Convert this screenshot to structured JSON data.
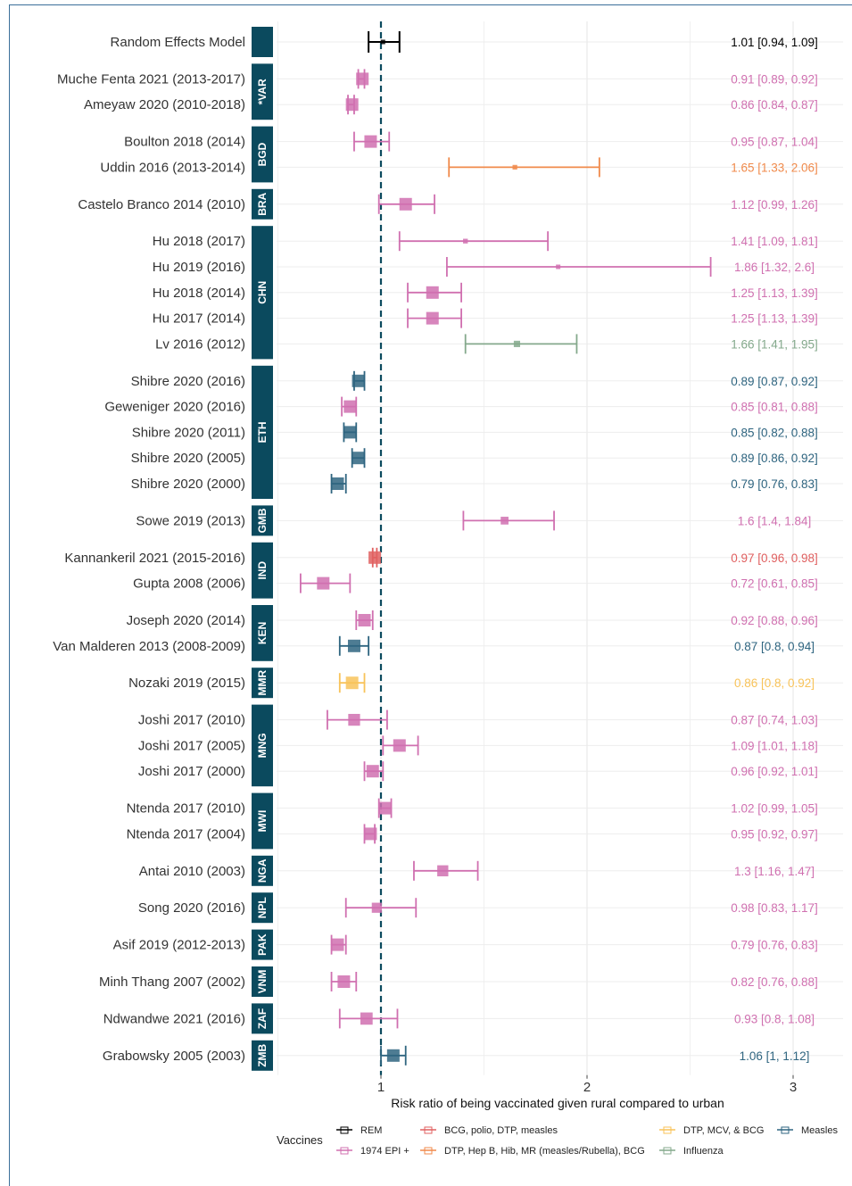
{
  "colors": {
    "REM": "#000000",
    "1974 EPI +": "#d070b0",
    "BCG, polio, DTP, measles": "#e06060",
    "DTP, Hep B, Hib, MR (measles/Rubella), BCG": "#f08a4b",
    "DTP, MCV, & BCG": "#f8c35a",
    "Influenza": "#84a98c",
    "Measles": "#2f6580",
    "strip": "#0b4a5e"
  },
  "chart_data": {
    "type": "forest",
    "xlabel": "Risk ratio  of being vaccinated given rural compared to urban",
    "x_ticks": [
      "1",
      "2",
      "3"
    ],
    "x_tick_values": [
      1,
      2,
      3
    ],
    "xlim": [
      0.5,
      3.2
    ],
    "reference_line": 1,
    "legend_title": "Vaccines",
    "legend": [
      "REM",
      "1974 EPI +",
      "BCG, polio, DTP, measles",
      "DTP, Hep B, Hib, MR (measles/Rubella), BCG",
      "DTP, MCV, & BCG",
      "Influenza",
      "Measles"
    ],
    "groups": [
      {
        "strip": "",
        "rows": [
          {
            "label": "Random Effects Model",
            "est": 1.01,
            "lo": 0.94,
            "hi": 1.09,
            "ci_text": "1.01 [0.94, 1.09]",
            "vaccine": "REM"
          }
        ]
      },
      {
        "strip": "*VAR",
        "rows": [
          {
            "label": "Muche Fenta 2021 (2013-2017)",
            "est": 0.91,
            "lo": 0.89,
            "hi": 0.92,
            "ci_text": "0.91 [0.89, 0.92]",
            "vaccine": "1974 EPI +"
          },
          {
            "label": "Ameyaw 2020 (2010-2018)",
            "est": 0.86,
            "lo": 0.84,
            "hi": 0.87,
            "ci_text": "0.86 [0.84, 0.87]",
            "vaccine": "1974 EPI +"
          }
        ]
      },
      {
        "strip": "BGD",
        "rows": [
          {
            "label": "Boulton 2018 (2014)",
            "est": 0.95,
            "lo": 0.87,
            "hi": 1.04,
            "ci_text": "0.95 [0.87, 1.04]",
            "vaccine": "1974 EPI +"
          },
          {
            "label": "Uddin 2016 (2013-2014)",
            "est": 1.65,
            "lo": 1.33,
            "hi": 2.06,
            "ci_text": "1.65 [1.33, 2.06]",
            "vaccine": "DTP, Hep B, Hib, MR (measles/Rubella), BCG"
          }
        ]
      },
      {
        "strip": "BRA",
        "rows": [
          {
            "label": "Castelo Branco 2014 (2010)",
            "est": 1.12,
            "lo": 0.99,
            "hi": 1.26,
            "ci_text": "1.12 [0.99, 1.26]",
            "vaccine": "1974 EPI +"
          }
        ]
      },
      {
        "strip": "CHN",
        "rows": [
          {
            "label": "Hu 2018 (2017)",
            "est": 1.41,
            "lo": 1.09,
            "hi": 1.81,
            "ci_text": "1.41 [1.09, 1.81]",
            "vaccine": "1974 EPI +"
          },
          {
            "label": "Hu 2019 (2016)",
            "est": 1.86,
            "lo": 1.32,
            "hi": 2.6,
            "ci_text": "1.86 [1.32, 2.6]",
            "vaccine": "1974 EPI +"
          },
          {
            "label": "Hu 2018 (2014)",
            "est": 1.25,
            "lo": 1.13,
            "hi": 1.39,
            "ci_text": "1.25 [1.13, 1.39]",
            "vaccine": "1974 EPI +"
          },
          {
            "label": "Hu 2017 (2014)",
            "est": 1.25,
            "lo": 1.13,
            "hi": 1.39,
            "ci_text": "1.25 [1.13, 1.39]",
            "vaccine": "1974 EPI +"
          },
          {
            "label": "Lv 2016 (2012)",
            "est": 1.66,
            "lo": 1.41,
            "hi": 1.95,
            "ci_text": "1.66 [1.41, 1.95]",
            "vaccine": "Influenza"
          }
        ]
      },
      {
        "strip": "ETH",
        "rows": [
          {
            "label": "Shibre 2020 (2016)",
            "est": 0.89,
            "lo": 0.87,
            "hi": 0.92,
            "ci_text": "0.89 [0.87, 0.92]",
            "vaccine": "Measles"
          },
          {
            "label": "Geweniger 2020 (2016)",
            "est": 0.85,
            "lo": 0.81,
            "hi": 0.88,
            "ci_text": "0.85 [0.81, 0.88]",
            "vaccine": "1974 EPI +"
          },
          {
            "label": "Shibre 2020 (2011)",
            "est": 0.85,
            "lo": 0.82,
            "hi": 0.88,
            "ci_text": "0.85 [0.82, 0.88]",
            "vaccine": "Measles"
          },
          {
            "label": "Shibre 2020 (2005)",
            "est": 0.89,
            "lo": 0.86,
            "hi": 0.92,
            "ci_text": "0.89 [0.86, 0.92]",
            "vaccine": "Measles"
          },
          {
            "label": "Shibre 2020 (2000)",
            "est": 0.79,
            "lo": 0.76,
            "hi": 0.83,
            "ci_text": "0.79 [0.76, 0.83]",
            "vaccine": "Measles"
          }
        ]
      },
      {
        "strip": "GMB",
        "rows": [
          {
            "label": "Sowe 2019 (2013)",
            "est": 1.6,
            "lo": 1.4,
            "hi": 1.84,
            "ci_text": "1.6 [1.4, 1.84]",
            "vaccine": "1974 EPI +"
          }
        ]
      },
      {
        "strip": "IND",
        "rows": [
          {
            "label": "Kannankeril 2021 (2015-2016)",
            "est": 0.97,
            "lo": 0.96,
            "hi": 0.98,
            "ci_text": "0.97 [0.96, 0.98]",
            "vaccine": "BCG, polio, DTP, measles"
          },
          {
            "label": "Gupta 2008 (2006)",
            "est": 0.72,
            "lo": 0.61,
            "hi": 0.85,
            "ci_text": "0.72 [0.61, 0.85]",
            "vaccine": "1974 EPI +"
          }
        ]
      },
      {
        "strip": "KEN",
        "rows": [
          {
            "label": "Joseph 2020 (2014)",
            "est": 0.92,
            "lo": 0.88,
            "hi": 0.96,
            "ci_text": "0.92 [0.88, 0.96]",
            "vaccine": "1974 EPI +"
          },
          {
            "label": "Van Malderen 2013 (2008-2009)",
            "est": 0.87,
            "lo": 0.8,
            "hi": 0.94,
            "ci_text": "0.87 [0.8, 0.94]",
            "vaccine": "Measles"
          }
        ]
      },
      {
        "strip": "MMR",
        "rows": [
          {
            "label": "Nozaki 2019 (2015)",
            "est": 0.86,
            "lo": 0.8,
            "hi": 0.92,
            "ci_text": "0.86 [0.8, 0.92]",
            "vaccine": "DTP, MCV, & BCG"
          }
        ]
      },
      {
        "strip": "MNG",
        "rows": [
          {
            "label": "Joshi 2017 (2010)",
            "est": 0.87,
            "lo": 0.74,
            "hi": 1.03,
            "ci_text": "0.87 [0.74, 1.03]",
            "vaccine": "1974 EPI +"
          },
          {
            "label": "Joshi 2017 (2005)",
            "est": 1.09,
            "lo": 1.01,
            "hi": 1.18,
            "ci_text": "1.09 [1.01, 1.18]",
            "vaccine": "1974 EPI +"
          },
          {
            "label": "Joshi 2017 (2000)",
            "est": 0.96,
            "lo": 0.92,
            "hi": 1.01,
            "ci_text": "0.96 [0.92, 1.01]",
            "vaccine": "1974 EPI +"
          }
        ]
      },
      {
        "strip": "MWI",
        "rows": [
          {
            "label": "Ntenda 2017 (2010)",
            "est": 1.02,
            "lo": 0.99,
            "hi": 1.05,
            "ci_text": "1.02 [0.99, 1.05]",
            "vaccine": "1974 EPI +"
          },
          {
            "label": "Ntenda 2017 (2004)",
            "est": 0.95,
            "lo": 0.92,
            "hi": 0.97,
            "ci_text": "0.95 [0.92, 0.97]",
            "vaccine": "1974 EPI +"
          }
        ]
      },
      {
        "strip": "NGA",
        "rows": [
          {
            "label": "Antai 2010 (2003)",
            "est": 1.3,
            "lo": 1.16,
            "hi": 1.47,
            "ci_text": "1.3 [1.16, 1.47]",
            "vaccine": "1974 EPI +"
          }
        ]
      },
      {
        "strip": "NPL",
        "rows": [
          {
            "label": "Song 2020 (2016)",
            "est": 0.98,
            "lo": 0.83,
            "hi": 1.17,
            "ci_text": "0.98 [0.83, 1.17]",
            "vaccine": "1974 EPI +"
          }
        ]
      },
      {
        "strip": "PAK",
        "rows": [
          {
            "label": "Asif 2019 (2012-2013)",
            "est": 0.79,
            "lo": 0.76,
            "hi": 0.83,
            "ci_text": "0.79 [0.76, 0.83]",
            "vaccine": "1974 EPI +"
          }
        ]
      },
      {
        "strip": "VNM",
        "rows": [
          {
            "label": "Minh Thang 2007 (2002)",
            "est": 0.82,
            "lo": 0.76,
            "hi": 0.88,
            "ci_text": "0.82 [0.76, 0.88]",
            "vaccine": "1974 EPI +"
          }
        ]
      },
      {
        "strip": "ZAF",
        "rows": [
          {
            "label": "Ndwandwe 2021 (2016)",
            "est": 0.93,
            "lo": 0.8,
            "hi": 1.08,
            "ci_text": "0.93 [0.8, 1.08]",
            "vaccine": "1974 EPI +"
          }
        ]
      },
      {
        "strip": "ZMB",
        "rows": [
          {
            "label": "Grabowsky 2005 (2003)",
            "est": 1.06,
            "lo": 1.0,
            "hi": 1.12,
            "ci_text": "1.06 [1, 1.12]",
            "vaccine": "Measles"
          }
        ]
      }
    ]
  }
}
